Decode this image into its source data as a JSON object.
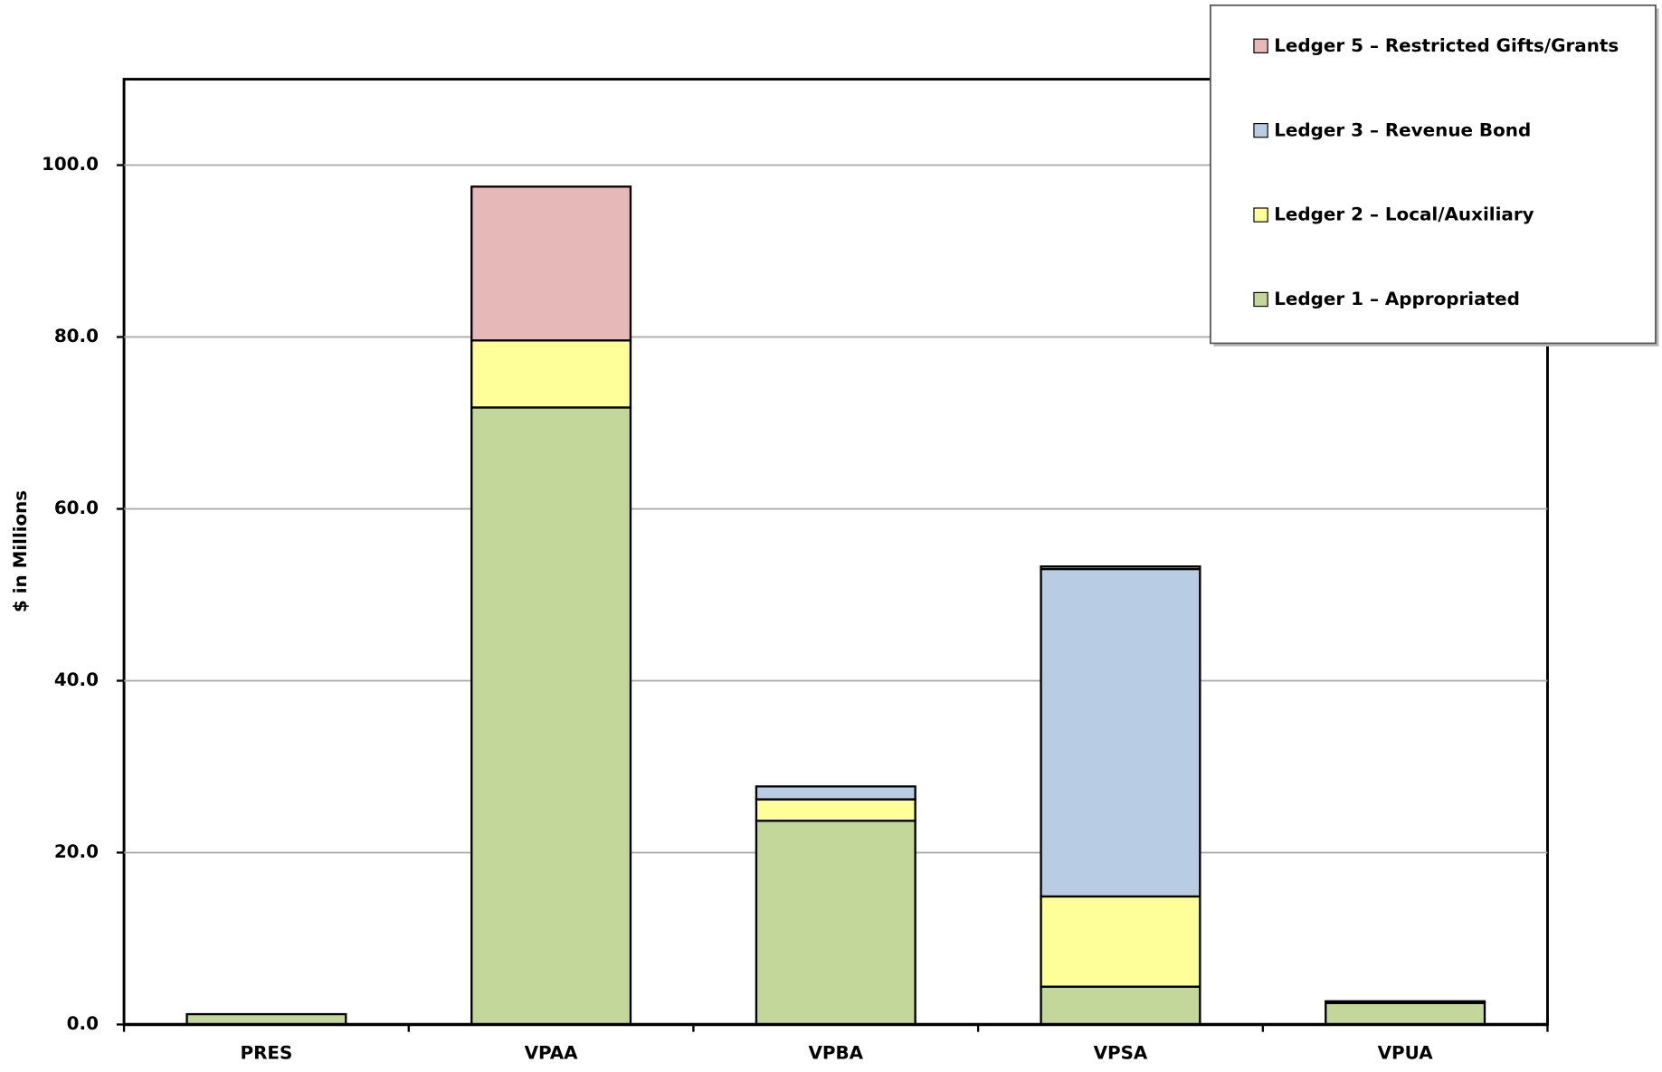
{
  "chart_data": {
    "type": "stacked_bar",
    "y_label": "$ in Millions",
    "categories": [
      "PRES",
      "VPAA",
      "VPBA",
      "VPSA",
      "VPUA"
    ],
    "series": [
      {
        "name": "Ledger 1 – Appropriated",
        "color": "#c4d79b",
        "values": [
          1.2,
          71.8,
          23.7,
          4.4,
          2.5
        ]
      },
      {
        "name": "Ledger 2 – Local/Auxiliary",
        "color": "#ffff99",
        "values": [
          0,
          7.8,
          2.5,
          10.5,
          0
        ]
      },
      {
        "name": "Ledger 3 – Revenue Bond",
        "color": "#b8cce4",
        "values": [
          0,
          0,
          1.5,
          38.1,
          0.2
        ]
      },
      {
        "name": "Ledger 5 – Restricted Gifts/Grants",
        "color": "#e6b9b8",
        "values": [
          0,
          17.9,
          0,
          0.3,
          0
        ]
      }
    ],
    "ylim": [
      0,
      110
    ],
    "yticks": [
      {
        "value": 0,
        "label": "0.0"
      },
      {
        "value": 20,
        "label": "20.0"
      },
      {
        "value": 40,
        "label": "40.0"
      },
      {
        "value": 60,
        "label": "60.0"
      },
      {
        "value": 80,
        "label": "80.0"
      },
      {
        "value": 100,
        "label": "100.0"
      }
    ],
    "grid": true,
    "legend": "upper right"
  }
}
